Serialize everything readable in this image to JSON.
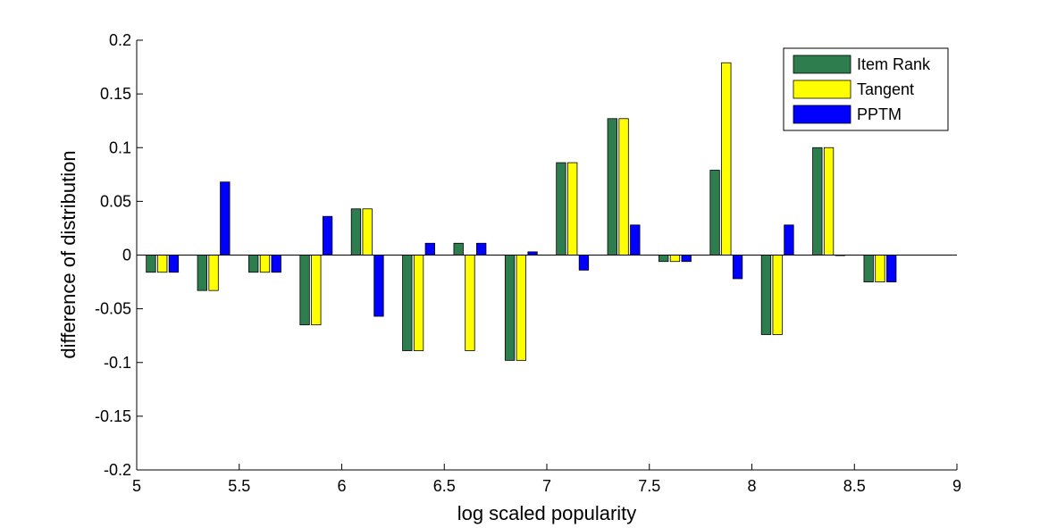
{
  "chart_data": {
    "type": "bar",
    "title": "",
    "xlabel": "log scaled popularity",
    "ylabel": "difference of distribution",
    "xlim": [
      5,
      9
    ],
    "ylim": [
      -0.2,
      0.2
    ],
    "xticks": [
      "5",
      "5.5",
      "6",
      "6.5",
      "7",
      "7.5",
      "8",
      "8.5",
      "9"
    ],
    "yticks": [
      "-0.2",
      "-0.15",
      "-0.1",
      "-0.05",
      "0",
      "0.05",
      "0.1",
      "0.15",
      "0.2"
    ],
    "x": [
      5.125,
      5.375,
      5.625,
      5.875,
      6.125,
      6.375,
      6.625,
      6.875,
      7.125,
      7.375,
      7.625,
      7.875,
      8.125,
      8.375,
      8.625
    ],
    "series": [
      {
        "name": "Item Rank",
        "color": "#2e7d4f",
        "values": [
          -0.016,
          -0.033,
          -0.016,
          -0.065,
          0.043,
          -0.089,
          0.011,
          -0.098,
          0.086,
          0.127,
          -0.006,
          0.079,
          -0.074,
          0.1,
          -0.025
        ]
      },
      {
        "name": "Tangent",
        "color": "#ffff00",
        "values": [
          -0.016,
          -0.033,
          -0.016,
          -0.065,
          0.043,
          -0.089,
          -0.089,
          -0.098,
          0.086,
          0.127,
          -0.006,
          0.179,
          -0.074,
          0.1,
          -0.025
        ]
      },
      {
        "name": "PPTM",
        "color": "#0000ff",
        "values": [
          -0.016,
          0.068,
          -0.016,
          0.036,
          -0.057,
          0.011,
          0.011,
          0.003,
          -0.014,
          0.028,
          -0.006,
          -0.022,
          0.028,
          0.0,
          -0.025
        ]
      }
    ],
    "legend_position": "top-right",
    "grid": false
  }
}
